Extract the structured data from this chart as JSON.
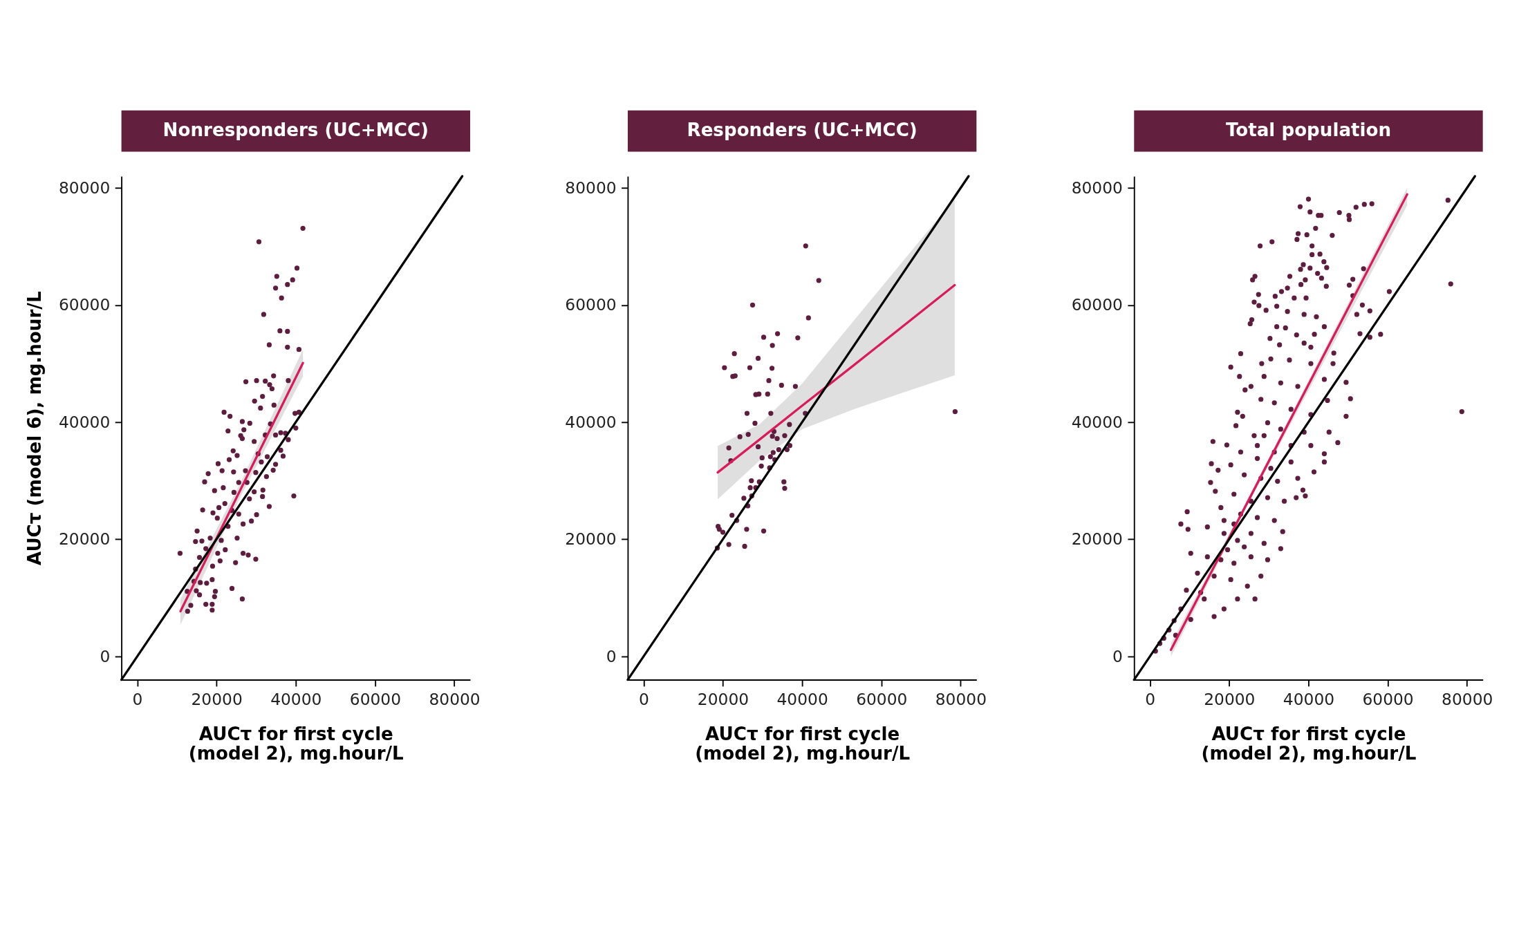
{
  "chart_data": [
    {
      "type": "scatter",
      "title": "Nonresponders (UC+MCC)",
      "xlabel": "AUCτ for first cycle\n(model 2), mg.hour/L",
      "ylabel": "AUCτ (model 6), mg.hour/L",
      "xlim": [
        -4000,
        84000
      ],
      "ylim": [
        -4000,
        82000
      ],
      "xticks": [
        0,
        20000,
        40000,
        60000,
        80000
      ],
      "yticks": [
        0,
        20000,
        40000,
        60000,
        80000
      ],
      "series": [
        {
          "color": "#5e1d3f",
          "marker": "circle",
          "x": [
            41800,
            30700,
            40300,
            35200,
            39200,
            37900,
            34900,
            36400,
            31900,
            36000,
            37900,
            33300,
            37900,
            40800,
            27400,
            30100,
            32300,
            33400,
            34000,
            34400,
            38100,
            29600,
            31600,
            31100,
            34500,
            21900,
            23400,
            39800,
            40800,
            26500,
            28400,
            22900,
            26900,
            26100,
            26500,
            29500,
            33600,
            32300,
            34900,
            36200,
            37400,
            40000,
            38100,
            36200,
            36800,
            24200,
            25200,
            23200,
            30500,
            32800,
            31300,
            20400,
            34900,
            34300,
            17900,
            17000,
            21400,
            24300,
            27300,
            29900,
            32600,
            25600,
            27700,
            19500,
            21700,
            24400,
            31700,
            29500,
            39500,
            16500,
            19100,
            20600,
            22100,
            28300,
            31600,
            33300,
            23900,
            25600,
            26700,
            28800,
            30100,
            22900,
            20200,
            15100,
            14700,
            16300,
            18400,
            21200,
            25200,
            22200,
            20300,
            10800,
            17300,
            15700,
            26700,
            28000,
            29900,
            20900,
            24800,
            19000,
            14700,
            14300,
            15900,
            17500,
            18900,
            23900,
            12600,
            14900,
            19700,
            15700,
            19500,
            26500,
            13500,
            17300,
            18900,
            12700,
            18900
          ],
          "values": [
            73100,
            70800,
            66300,
            64900,
            64300,
            63500,
            62900,
            61200,
            58400,
            55600,
            55500,
            53200,
            52800,
            52400,
            46900,
            47100,
            47000,
            46400,
            45700,
            47900,
            47100,
            43600,
            44400,
            42400,
            42900,
            41700,
            41000,
            41500,
            41700,
            40100,
            39800,
            38500,
            38700,
            37700,
            37200,
            36700,
            39700,
            37800,
            37800,
            38200,
            38100,
            39000,
            37000,
            35200,
            34200,
            35100,
            34300,
            33600,
            34600,
            34100,
            33200,
            32900,
            32800,
            31800,
            31200,
            29800,
            31700,
            31500,
            31700,
            31400,
            30700,
            29700,
            29700,
            28300,
            28800,
            28000,
            28400,
            28100,
            27400,
            25000,
            24500,
            25400,
            26100,
            26900,
            27300,
            25600,
            24900,
            24300,
            22600,
            23100,
            24200,
            22200,
            23600,
            21400,
            19600,
            19700,
            20200,
            19800,
            20200,
            18200,
            17600,
            17600,
            18400,
            16900,
            17600,
            17300,
            16600,
            16300,
            16000,
            15400,
            14900,
            12800,
            12600,
            12500,
            13100,
            11600,
            11100,
            11200,
            11100,
            10500,
            10200,
            9800,
            8700,
            8900,
            8900,
            7700,
            7900
          ]
        },
        {
          "type": "line",
          "color": "#d81b5a",
          "line_style": "solid",
          "x": [
            10900,
            26000,
            41800
          ],
          "values": [
            7700,
            28400,
            50100
          ],
          "lower": [
            5400,
            27200,
            47800
          ],
          "upper": [
            9800,
            29600,
            52400
          ]
        },
        {
          "type": "line",
          "color": "#000000",
          "line_style": "solid",
          "x": [
            -4000,
            82000
          ],
          "values": [
            -4000,
            82000
          ]
        }
      ]
    },
    {
      "type": "scatter",
      "title": "Responders (UC+MCC)",
      "xlabel": "AUCτ for first cycle\n(model 2), mg.hour/L",
      "xlim": [
        -4000,
        84000
      ],
      "ylim": [
        -4000,
        82000
      ],
      "xticks": [
        0,
        20000,
        40000,
        60000,
        80000
      ],
      "yticks": [
        0,
        20000,
        40000,
        60000,
        80000
      ],
      "series": [
        {
          "color": "#5e1d3f",
          "marker": "circle",
          "x": [
            40900,
            44200,
            27500,
            41600,
            33800,
            30300,
            38900,
            32500,
            22900,
            28900,
            20400,
            26800,
            32400,
            22500,
            23100,
            31600,
            34800,
            38300,
            28300,
            29100,
            31300,
            26100,
            32100,
            40800,
            78600,
            28100,
            32900,
            36800,
            24300,
            26400,
            32500,
            33700,
            35600,
            21500,
            28900,
            36900,
            34100,
            36200,
            22000,
            32700,
            29900,
            32000,
            33100,
            29700,
            31800,
            27200,
            29200,
            35400,
            26900,
            28300,
            35600,
            27300,
            25300,
            26300,
            22300,
            23500,
            18800,
            19100,
            20000,
            26000,
            30300,
            21500,
            25500,
            18600
          ],
          "values": [
            70100,
            64200,
            60000,
            57800,
            55100,
            54500,
            54400,
            53100,
            51700,
            50900,
            49300,
            49300,
            49200,
            47800,
            47900,
            47100,
            46300,
            46100,
            44700,
            44800,
            44800,
            41500,
            41500,
            41500,
            41800,
            39800,
            38400,
            39600,
            37500,
            37900,
            37600,
            37200,
            37700,
            35600,
            35800,
            36000,
            35300,
            35300,
            33400,
            34800,
            33900,
            34100,
            33600,
            32500,
            32200,
            30000,
            29800,
            29800,
            28800,
            28800,
            28700,
            27400,
            27000,
            25700,
            24100,
            23200,
            22200,
            21700,
            21200,
            21700,
            21400,
            19100,
            18800,
            18500
          ]
        },
        {
          "type": "line",
          "color": "#d81b5a",
          "line_style": "solid",
          "x": [
            18700,
            29400,
            40000,
            53000,
            78500
          ],
          "values": [
            31400,
            37100,
            42800,
            49700,
            63400
          ],
          "lower": [
            26800,
            33500,
            38800,
            42200,
            48000
          ],
          "upper": [
            35900,
            39700,
            46600,
            57300,
            78200
          ]
        },
        {
          "type": "line",
          "color": "#000000",
          "line_style": "solid",
          "x": [
            -4000,
            82000
          ],
          "values": [
            -4000,
            82000
          ]
        }
      ]
    },
    {
      "type": "scatter",
      "title": "Total population",
      "xlabel": "AUCτ for first cycle\n(model 2), mg.hour/L",
      "xlim": [
        -4000,
        84000
      ],
      "ylim": [
        -4000,
        82000
      ],
      "xticks": [
        0,
        20000,
        40000,
        60000,
        80000
      ],
      "yticks": [
        0,
        20000,
        40000,
        60000,
        80000
      ],
      "series": [
        {
          "color": "#5e1d3f",
          "marker": "circle",
          "x": [
            75200,
            75900,
            78700,
            40000,
            37900,
            40400,
            42500,
            43200,
            47800,
            50200,
            50300,
            52000,
            54100,
            56000,
            41800,
            37400,
            39600,
            37100,
            46000,
            27800,
            30800,
            40900,
            40900,
            42900,
            38700,
            43900,
            44600,
            40400,
            38000,
            53900,
            25900,
            26500,
            35300,
            42300,
            43300,
            39200,
            44500,
            51200,
            50300,
            60400,
            51200,
            38100,
            34700,
            33200,
            27400,
            31600,
            36400,
            39400,
            26300,
            27500,
            53600,
            52200,
            55500,
            32000,
            34700,
            38900,
            42000,
            25700,
            25300,
            29300,
            32000,
            34200,
            37000,
            41500,
            44000,
            53000,
            55500,
            58200,
            30300,
            32700,
            38900,
            40600,
            46400,
            22900,
            20400,
            28200,
            30500,
            35200,
            40600,
            46200,
            22600,
            25500,
            28800,
            33000,
            37300,
            44000,
            49500,
            50600,
            44800,
            49500,
            22100,
            24000,
            28000,
            31400,
            35600,
            40600,
            23400,
            21700,
            26300,
            29700,
            33000,
            38900,
            45200,
            47400,
            15900,
            19400,
            22900,
            27100,
            31400,
            35600,
            40600,
            44000,
            44000,
            15500,
            17200,
            20400,
            23800,
            28000,
            32200,
            37300,
            41400,
            38600,
            39200,
            15300,
            16500,
            21200,
            25500,
            29700,
            33900,
            36900,
            17900,
            22900,
            27100,
            31400,
            9400,
            7800,
            9600,
            14500,
            18700,
            22100,
            25500,
            28800,
            33500,
            33000,
            10300,
            14500,
            17900,
            21200,
            25500,
            29700,
            12000,
            16200,
            20400,
            24600,
            28000,
            26500,
            9200,
            12800,
            16200,
            18700,
            22100,
            10300,
            7800,
            6100,
            4800,
            3500,
            1400,
            2500,
            6500,
            13700,
            18700,
            19600,
            21200,
            23800,
            30500,
            35600,
            27100,
            28800
          ],
          "values": [
            77900,
            63600,
            41800,
            78100,
            76800,
            75900,
            75300,
            75300,
            75800,
            75300,
            74600,
            76700,
            77200,
            77300,
            73100,
            72200,
            72000,
            71200,
            71900,
            70100,
            70800,
            70100,
            68600,
            68700,
            66900,
            67400,
            66400,
            66300,
            66100,
            66200,
            64300,
            64900,
            64900,
            65400,
            64600,
            64300,
            63200,
            64400,
            63400,
            62300,
            61600,
            63500,
            62900,
            62300,
            61800,
            61500,
            61200,
            61200,
            60500,
            59900,
            60000,
            58400,
            59000,
            59800,
            58900,
            58400,
            58000,
            57500,
            56800,
            59100,
            56300,
            56100,
            54900,
            55000,
            56300,
            55100,
            54500,
            55000,
            54300,
            53200,
            53500,
            52800,
            51800,
            51700,
            49400,
            50000,
            50800,
            50600,
            50000,
            50000,
            47800,
            46100,
            47800,
            46700,
            46100,
            47300,
            46800,
            44000,
            43700,
            41000,
            41700,
            45500,
            43900,
            43300,
            42200,
            41300,
            41000,
            39400,
            37700,
            39900,
            38800,
            38300,
            38300,
            36500,
            36700,
            36100,
            34900,
            36000,
            34900,
            36000,
            36000,
            34600,
            33200,
            32900,
            31800,
            32700,
            31000,
            30400,
            29900,
            30400,
            31500,
            28400,
            27400,
            29700,
            28200,
            27700,
            26500,
            27100,
            26500,
            27100,
            25400,
            24300,
            23700,
            23200,
            24700,
            22600,
            21700,
            22100,
            21000,
            19800,
            21000,
            19300,
            21300,
            18400,
            17600,
            17000,
            16500,
            15900,
            17000,
            16500,
            14200,
            13700,
            13100,
            12000,
            13700,
            9800,
            11300,
            10900,
            6800,
            8100,
            9800,
            6300,
            8100,
            6100,
            4500,
            3100,
            900,
            2200,
            3600,
            9800,
            23200,
            18200,
            22600,
            18700,
            32100,
            33200,
            33800,
            37700
          ]
        },
        {
          "type": "line",
          "color": "#d81b5a",
          "line_style": "solid",
          "x": [
            5300,
            25000,
            64900
          ],
          "values": [
            1100,
            26800,
            78900
          ],
          "lower": [
            0,
            26300,
            77000
          ],
          "upper": [
            2200,
            27300,
            80000
          ]
        },
        {
          "type": "line",
          "color": "#000000",
          "line_style": "solid",
          "x": [
            -4000,
            82000
          ],
          "values": [
            -4000,
            82000
          ]
        }
      ]
    }
  ]
}
